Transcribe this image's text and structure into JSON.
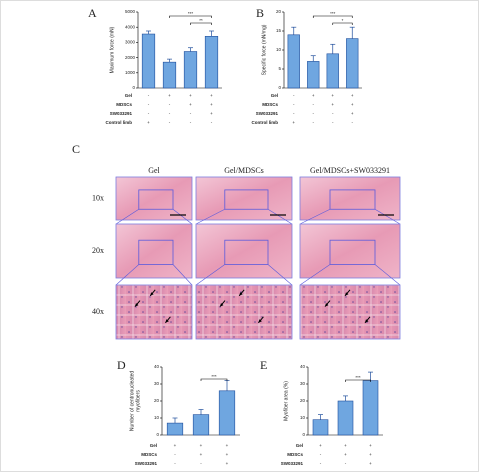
{
  "panel_labels": [
    "A",
    "B",
    "C",
    "D",
    "E"
  ],
  "chart_data": [
    {
      "type": "bar",
      "y_label": [
        "Maximum force (mN)"
      ],
      "values": [
        3550,
        1700,
        2400,
        3400
      ],
      "errors": [
        200,
        200,
        250,
        350
      ],
      "ylim": [
        0,
        5000
      ],
      "yticks": [
        0,
        1000,
        2000,
        3000,
        4000,
        5000
      ],
      "color": "#6fa6e0",
      "edge_color": "#1f4e9c",
      "annotations": [
        "***",
        "**"
      ],
      "table": {
        "row_labels": [
          "Gel",
          "MDSCs",
          "SW033291",
          "Control limb"
        ],
        "rows": [
          [
            "-",
            "+",
            "+",
            "+"
          ],
          [
            "-",
            "-",
            "+",
            "+"
          ],
          [
            "-",
            "-",
            "-",
            "+"
          ],
          [
            "+",
            "-",
            "-",
            "-"
          ]
        ]
      }
    },
    {
      "type": "bar",
      "y_label": [
        "Specific force (mN/mg)"
      ],
      "values": [
        14,
        7,
        9,
        13
      ],
      "errors": [
        2,
        1.5,
        2.5,
        3
      ],
      "ylim": [
        0,
        20
      ],
      "yticks": [
        0,
        5,
        10,
        15,
        20
      ],
      "color": "#6fa6e0",
      "edge_color": "#1f4e9c",
      "annotations": [
        "***",
        "*"
      ],
      "table": {
        "row_labels": [
          "Gel",
          "MDSCs",
          "SW033291",
          "Control limb"
        ],
        "rows": [
          [
            "-",
            "+",
            "+",
            "+"
          ],
          [
            "-",
            "-",
            "+",
            "+"
          ],
          [
            "-",
            "-",
            "-",
            "+"
          ],
          [
            "+",
            "-",
            "-",
            "-"
          ]
        ]
      }
    },
    {
      "type": "bar",
      "y_label": [
        "Number of centronucleated",
        "myofibers"
      ],
      "values": [
        7,
        12,
        26
      ],
      "errors": [
        3,
        3,
        6
      ],
      "ylim": [
        0,
        40
      ],
      "yticks": [
        0,
        10,
        20,
        30,
        40
      ],
      "color": "#6fa6e0",
      "edge_color": "#1f4e9c",
      "annotations": [
        "***"
      ],
      "table": {
        "row_labels": [
          "Gel",
          "MDSCs",
          "SW033291"
        ],
        "rows": [
          [
            "+",
            "+",
            "+"
          ],
          [
            "-",
            "+",
            "+"
          ],
          [
            "-",
            "-",
            "+"
          ]
        ]
      }
    },
    {
      "type": "bar",
      "y_label": [
        "Myofiber area (%)"
      ],
      "values": [
        9,
        20,
        32
      ],
      "errors": [
        3,
        3,
        5
      ],
      "ylim": [
        0,
        40
      ],
      "yticks": [
        0,
        10,
        20,
        30,
        40
      ],
      "color": "#6fa6e0",
      "edge_color": "#1f4e9c",
      "annotations": [
        "***"
      ],
      "table": {
        "row_labels": [
          "Gel",
          "MDSCs",
          "SW033291"
        ],
        "rows": [
          [
            "+",
            "+",
            "+"
          ],
          [
            "-",
            "+",
            "+"
          ],
          [
            "-",
            "-",
            "+"
          ]
        ]
      }
    }
  ],
  "histology": {
    "column_labels": [
      "Gel",
      "Gel/MDSCs",
      "Gel/MDSCs+SW033291"
    ],
    "row_labels": [
      "10x",
      "20x",
      "40x"
    ]
  }
}
